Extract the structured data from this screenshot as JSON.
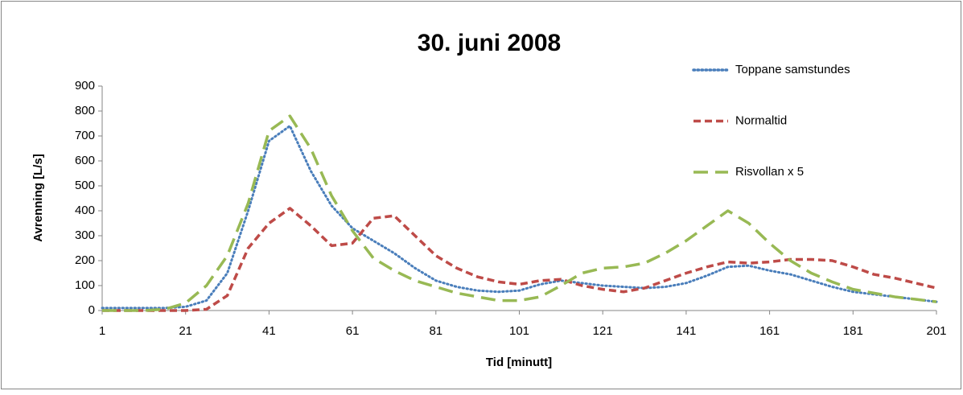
{
  "chart_data": {
    "type": "line",
    "title": "30. juni 2008",
    "x_label": "Tid [minutt]",
    "y_label": "Avrenning [L/s]",
    "x": [
      1,
      6,
      11,
      16,
      21,
      26,
      31,
      36,
      41,
      46,
      51,
      56,
      61,
      66,
      71,
      76,
      81,
      86,
      91,
      96,
      101,
      106,
      111,
      116,
      121,
      126,
      131,
      136,
      141,
      146,
      151,
      156,
      161,
      166,
      171,
      176,
      181,
      186,
      191,
      196,
      201
    ],
    "xlim": [
      1,
      201
    ],
    "xticks": [
      1,
      21,
      41,
      61,
      81,
      101,
      121,
      141,
      161,
      181,
      201
    ],
    "ylim": [
      0,
      900
    ],
    "yticks": [
      0,
      100,
      200,
      300,
      400,
      500,
      600,
      700,
      800,
      900
    ],
    "series": [
      {
        "name": "Toppane samstundes",
        "color": "#4a7ebb",
        "dash": "dotted",
        "values": [
          10,
          10,
          10,
          10,
          15,
          40,
          150,
          400,
          680,
          740,
          560,
          420,
          330,
          280,
          230,
          170,
          120,
          95,
          80,
          75,
          80,
          105,
          120,
          110,
          100,
          95,
          90,
          95,
          110,
          140,
          175,
          180,
          160,
          145,
          120,
          95,
          75,
          65,
          55,
          45,
          35
        ]
      },
      {
        "name": "Normaltid",
        "color": "#be4b48",
        "dash": "dashed",
        "values": [
          0,
          0,
          0,
          0,
          0,
          5,
          60,
          250,
          350,
          410,
          340,
          260,
          270,
          370,
          380,
          300,
          220,
          170,
          135,
          115,
          105,
          120,
          125,
          100,
          85,
          75,
          90,
          120,
          150,
          175,
          195,
          190,
          195,
          205,
          205,
          200,
          175,
          145,
          130,
          110,
          90
        ]
      },
      {
        "name": "Risvollan x 5",
        "color": "#98b954",
        "dash": "longdash",
        "values": [
          0,
          0,
          0,
          5,
          30,
          100,
          220,
          430,
          720,
          780,
          650,
          460,
          320,
          210,
          160,
          120,
          95,
          70,
          55,
          40,
          40,
          55,
          100,
          150,
          170,
          175,
          190,
          230,
          280,
          340,
          400,
          350,
          270,
          200,
          150,
          115,
          85,
          70,
          55,
          45,
          35
        ]
      }
    ]
  }
}
